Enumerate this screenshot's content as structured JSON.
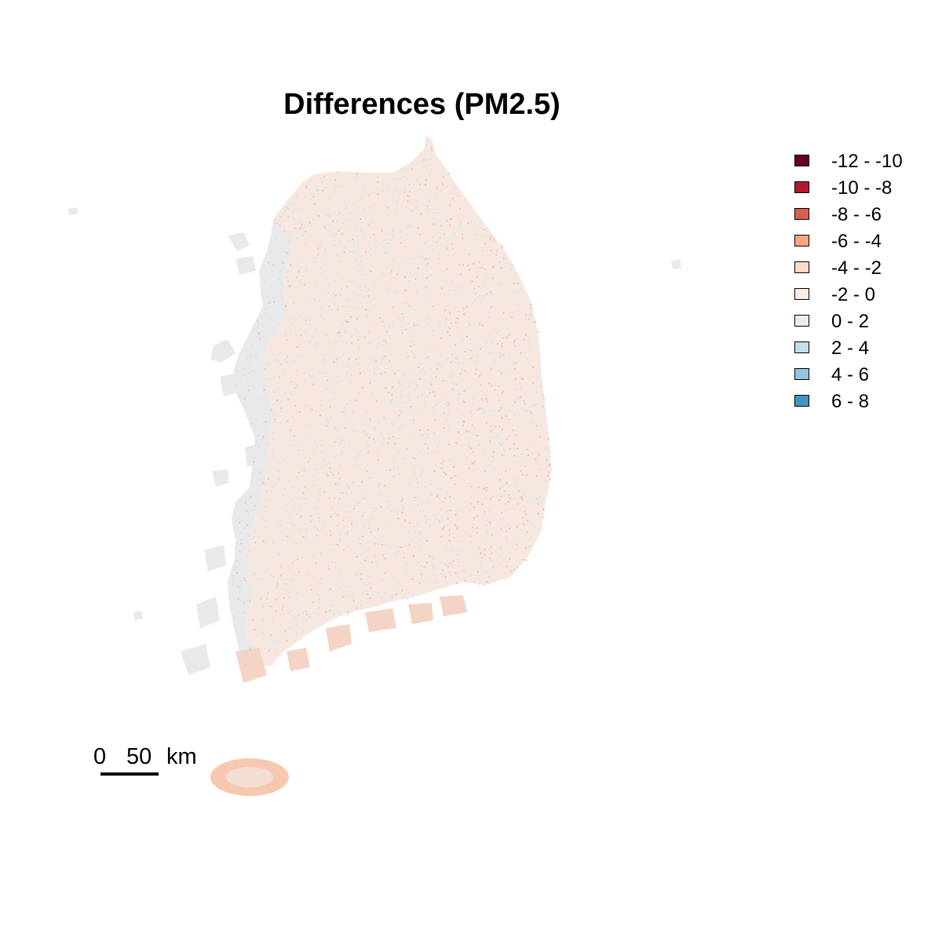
{
  "title": "Differences (PM2.5)",
  "legend": [
    {
      "label": "-12 - -10",
      "color": "#67001f"
    },
    {
      "label": "-10 - -8",
      "color": "#b2182b"
    },
    {
      "label": "-8 - -6",
      "color": "#d6604d"
    },
    {
      "label": "-6 - -4",
      "color": "#f4a582"
    },
    {
      "label": "-4 - -2",
      "color": "#fddbc7"
    },
    {
      "label": "-2 - 0",
      "color": "#fbece4"
    },
    {
      "label": "0 - 2",
      "color": "#e6eef3"
    },
    {
      "label": "2 - 4",
      "color": "#c2dfea"
    },
    {
      "label": "4 - 6",
      "color": "#92c5de"
    },
    {
      "label": "6 - 8",
      "color": "#4393c3"
    }
  ],
  "scalebar": {
    "zero": "0",
    "value": "50",
    "unit": "km"
  },
  "colors": {
    "land_base": "#f6e8e1",
    "land_west": "#e9e9eb",
    "blue_speckle": "#c8e2ef",
    "coast_orange": "#f4b79c"
  }
}
